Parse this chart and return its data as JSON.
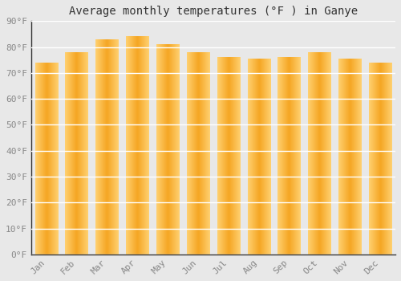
{
  "title": "Average monthly temperatures (°F ) in Ganye",
  "months": [
    "Jan",
    "Feb",
    "Mar",
    "Apr",
    "May",
    "Jun",
    "Jul",
    "Aug",
    "Sep",
    "Oct",
    "Nov",
    "Dec"
  ],
  "values": [
    74,
    78,
    83,
    84,
    81,
    78,
    76,
    75.5,
    76,
    78,
    75.5,
    74
  ],
  "bar_color_center": "#F5A623",
  "bar_color_edge": "#FFD070",
  "ylim": [
    0,
    90
  ],
  "yticks": [
    0,
    10,
    20,
    30,
    40,
    50,
    60,
    70,
    80,
    90
  ],
  "ytick_labels": [
    "0°F",
    "10°F",
    "20°F",
    "30°F",
    "40°F",
    "50°F",
    "60°F",
    "70°F",
    "80°F",
    "90°F"
  ],
  "background_color": "#e8e8e8",
  "grid_color": "#ffffff",
  "title_fontsize": 10,
  "tick_fontsize": 8,
  "bar_width": 0.75,
  "bar_gap_color": "#cccccc"
}
